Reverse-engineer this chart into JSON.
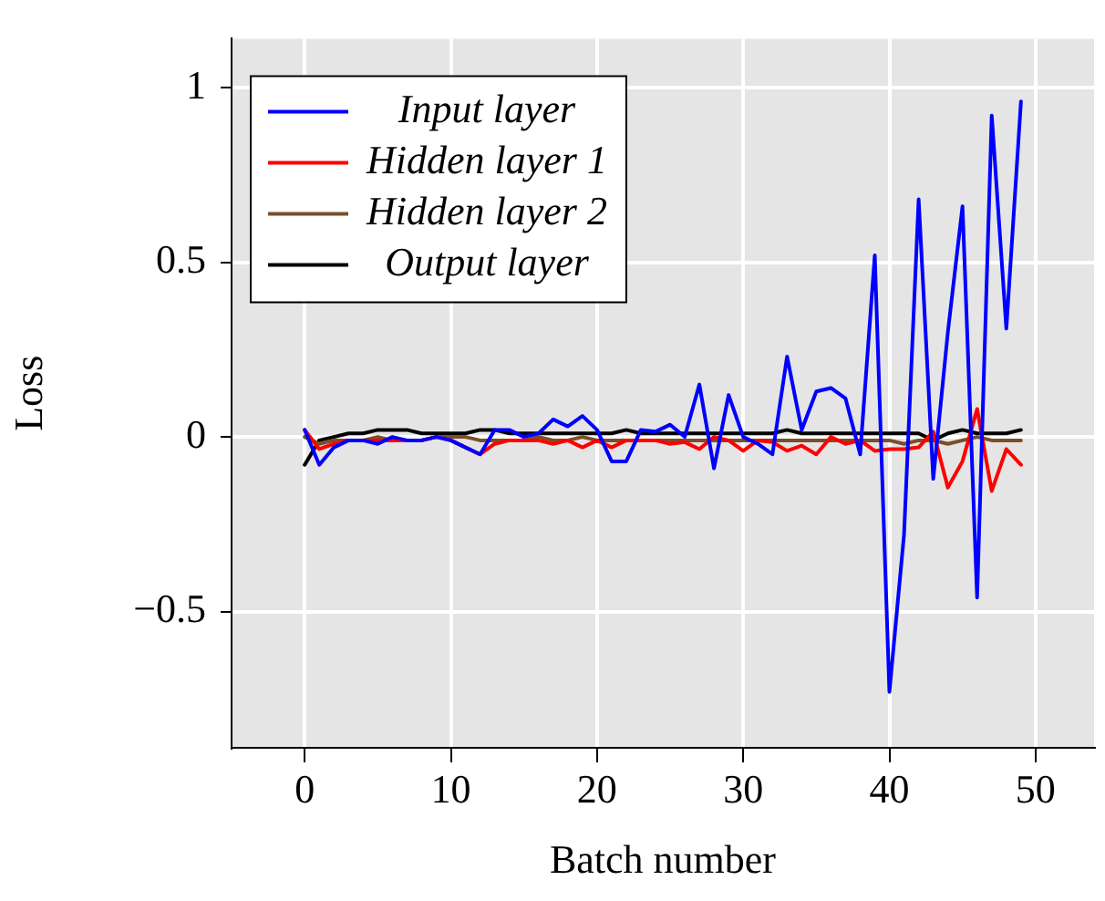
{
  "chart_data": {
    "type": "line",
    "xlabel": "Batch number",
    "ylabel": "Loss",
    "x": [
      0,
      1,
      2,
      3,
      4,
      5,
      6,
      7,
      8,
      9,
      10,
      11,
      12,
      13,
      14,
      15,
      16,
      17,
      18,
      19,
      20,
      21,
      22,
      23,
      24,
      25,
      26,
      27,
      28,
      29,
      30,
      31,
      32,
      33,
      34,
      35,
      36,
      37,
      38,
      39,
      40,
      41,
      42,
      43,
      44,
      45,
      46,
      47,
      48,
      49
    ],
    "series": [
      {
        "name": "Input layer",
        "color": "#0000ff",
        "values": [
          0.02,
          -0.08,
          -0.03,
          -0.01,
          -0.01,
          -0.02,
          0,
          -0.01,
          -0.01,
          0,
          -0.01,
          -0.03,
          -0.05,
          0.02,
          0.02,
          0,
          0.01,
          0.05,
          0.03,
          0.06,
          0.02,
          -0.07,
          -0.07,
          0.02,
          0.015,
          0.035,
          0,
          0.15,
          -0.09,
          0.12,
          0,
          -0.02,
          -0.05,
          0.23,
          0.02,
          0.13,
          0.14,
          0.11,
          -0.05,
          0.52,
          -0.73,
          -0.28,
          0.68,
          -0.12,
          0.3,
          0.66,
          -0.46,
          0.92,
          0.31,
          0.96
        ]
      },
      {
        "name": "Hidden layer 1",
        "color": "#ff0000",
        "values": [
          0.02,
          -0.035,
          -0.02,
          -0.01,
          -0.01,
          -0.01,
          -0.01,
          -0.01,
          -0.01,
          0,
          -0.01,
          -0.03,
          -0.05,
          -0.02,
          -0.01,
          -0.01,
          -0.01,
          -0.02,
          -0.01,
          -0.03,
          -0.01,
          -0.03,
          -0.01,
          -0.01,
          -0.01,
          -0.02,
          -0.015,
          -0.035,
          0,
          -0.01,
          -0.04,
          -0.01,
          -0.015,
          -0.04,
          -0.025,
          -0.05,
          0,
          -0.02,
          -0.01,
          -0.04,
          -0.035,
          -0.035,
          -0.03,
          0.015,
          -0.145,
          -0.07,
          0.08,
          -0.155,
          -0.035,
          -0.08
        ]
      },
      {
        "name": "Hidden layer 2",
        "color": "#7a4f2a",
        "values": [
          0,
          -0.02,
          -0.01,
          -0.01,
          -0.01,
          0,
          -0.01,
          -0.01,
          -0.01,
          0,
          0,
          0,
          -0.01,
          -0.01,
          -0.01,
          -0.01,
          0,
          -0.01,
          -0.01,
          0,
          -0.01,
          -0.01,
          -0.01,
          -0.01,
          -0.01,
          -0.01,
          -0.01,
          -0.01,
          -0.01,
          -0.01,
          -0.01,
          -0.01,
          -0.01,
          -0.01,
          -0.01,
          -0.01,
          -0.01,
          -0.01,
          -0.01,
          -0.01,
          -0.01,
          -0.02,
          -0.01,
          -0.01,
          -0.02,
          -0.01,
          0,
          -0.01,
          -0.01,
          -0.01
        ]
      },
      {
        "name": "Output layer",
        "color": "#000000",
        "values": [
          -0.08,
          -0.01,
          0,
          0.01,
          0.01,
          0.02,
          0.02,
          0.02,
          0.01,
          0.01,
          0.01,
          0.01,
          0.02,
          0.02,
          0.01,
          0.01,
          0.01,
          0.01,
          0.01,
          0.01,
          0.01,
          0.01,
          0.02,
          0.01,
          0.01,
          0.01,
          0.01,
          0.01,
          0.01,
          0.01,
          0.01,
          0.01,
          0.01,
          0.02,
          0.01,
          0.01,
          0.01,
          0.01,
          0.01,
          0.01,
          0.01,
          0.01,
          0.01,
          -0.01,
          0.01,
          0.02,
          0.01,
          0.01,
          0.01,
          0.02
        ]
      }
    ],
    "xlim": [
      -5,
      54
    ],
    "xticks": [
      0,
      10,
      20,
      30,
      40,
      50
    ],
    "ylim": [
      -0.89,
      1.14
    ],
    "yticks": [
      {
        "value": -0.5,
        "label": "−0.5"
      },
      0,
      0.5,
      1
    ],
    "grid": true,
    "legend": "top left",
    "marker": "none",
    "line_style": "solid"
  }
}
